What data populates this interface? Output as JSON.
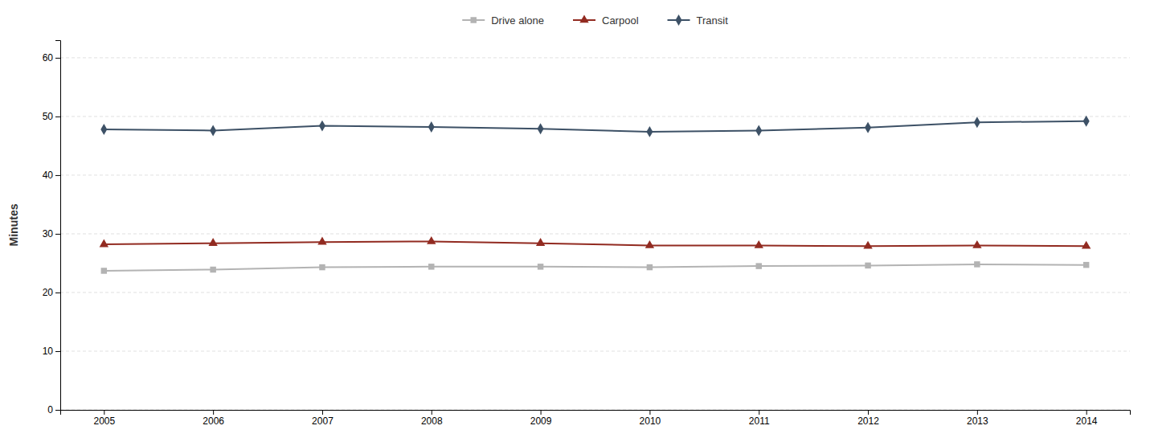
{
  "chart_data": {
    "type": "line",
    "y_label": "Minutes",
    "x": [
      2005,
      2006,
      2007,
      2008,
      2009,
      2010,
      2011,
      2012,
      2013,
      2014
    ],
    "series": [
      {
        "name": "Drive alone",
        "color": "#b3b3b3",
        "marker": "square",
        "values": [
          23.7,
          23.9,
          24.3,
          24.4,
          24.4,
          24.3,
          24.5,
          24.6,
          24.8,
          24.7
        ]
      },
      {
        "name": "Carpool",
        "color": "#922b21",
        "marker": "triangle",
        "values": [
          28.2,
          28.4,
          28.6,
          28.7,
          28.4,
          28.0,
          28.0,
          27.9,
          28.0,
          27.9
        ]
      },
      {
        "name": "Transit",
        "color": "#3d5166",
        "marker": "diamond",
        "values": [
          47.8,
          47.6,
          48.4,
          48.2,
          47.9,
          47.4,
          47.6,
          48.1,
          49.0,
          49.2
        ]
      }
    ],
    "xlim": [
      2004.6,
      2014.4
    ],
    "xticks": [
      2005,
      2006,
      2007,
      2008,
      2009,
      2010,
      2011,
      2012,
      2013,
      2014
    ],
    "ylim": [
      0,
      63
    ],
    "yticks": [
      0,
      10,
      20,
      30,
      40,
      50,
      60
    ],
    "grid": "y",
    "legend": "top"
  }
}
